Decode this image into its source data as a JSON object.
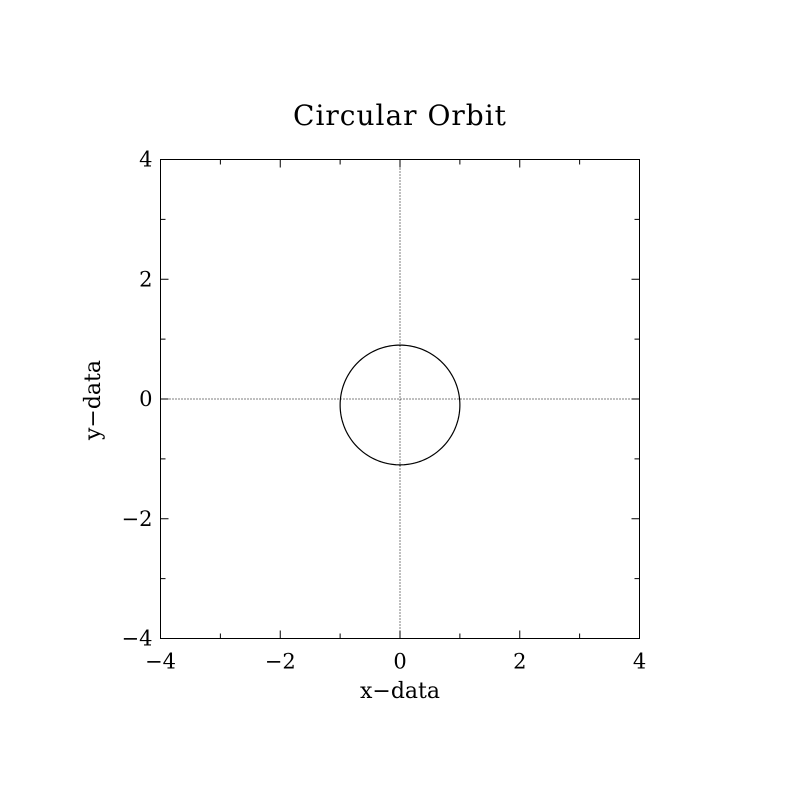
{
  "chart_data": {
    "type": "line",
    "title": "Circular Orbit",
    "xlabel": "x−data",
    "ylabel": "y−data",
    "xlim": [
      -4,
      4
    ],
    "ylim": [
      -4,
      4
    ],
    "x_major_ticks": [
      -4,
      -2,
      0,
      2,
      4
    ],
    "y_major_ticks": [
      -4,
      -2,
      0,
      2,
      4
    ],
    "x_minor_ticks": [
      -3,
      -1,
      1,
      3
    ],
    "y_minor_ticks": [
      -3,
      -1,
      1,
      3
    ],
    "x_tick_labels": [
      "−4",
      "−2",
      "0",
      "2",
      "4"
    ],
    "y_tick_labels": [
      "−4",
      "−2",
      "0",
      "2",
      "4"
    ],
    "zero_lines": true,
    "grid": false,
    "series": [
      {
        "center": [
          0,
          -0.1
        ],
        "radius": 1.0,
        "color": "#000000"
      }
    ]
  }
}
